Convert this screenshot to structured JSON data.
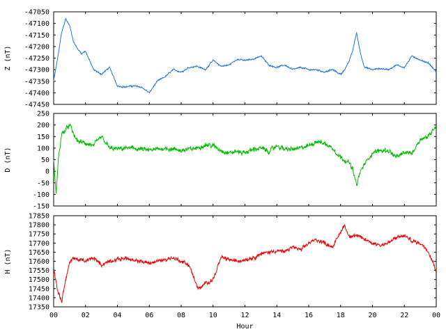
{
  "chart_data": [
    {
      "type": "line",
      "ylabel": "Z (nT)",
      "series_color": "#1f77d4",
      "ylim": [
        -47450,
        -47050
      ],
      "yticks": [
        -47050,
        -47100,
        -47150,
        -47200,
        -47250,
        -47300,
        -47350,
        -47400,
        -47450
      ],
      "x": [
        0,
        0.25,
        0.5,
        0.75,
        1.0,
        1.25,
        1.5,
        1.75,
        2.0,
        2.5,
        3.0,
        3.5,
        4.0,
        4.5,
        5.0,
        5.5,
        6.0,
        6.5,
        7.0,
        7.5,
        8.0,
        8.5,
        9.0,
        9.5,
        10.0,
        10.5,
        11.0,
        11.5,
        12.0,
        12.5,
        13.0,
        13.5,
        14.0,
        14.5,
        15.0,
        15.5,
        16.0,
        16.5,
        17.0,
        17.5,
        18.0,
        18.25,
        18.5,
        18.75,
        19.0,
        19.25,
        19.5,
        20.0,
        20.5,
        21.0,
        21.5,
        22.0,
        22.5,
        23.0,
        23.5,
        24.0
      ],
      "y": [
        -47350,
        -47250,
        -47140,
        -47080,
        -47110,
        -47180,
        -47210,
        -47230,
        -47220,
        -47300,
        -47320,
        -47290,
        -47370,
        -47375,
        -47370,
        -47375,
        -47400,
        -47350,
        -47330,
        -47300,
        -47310,
        -47290,
        -47285,
        -47300,
        -47260,
        -47285,
        -47280,
        -47255,
        -47260,
        -47255,
        -47240,
        -47280,
        -47290,
        -47280,
        -47300,
        -47290,
        -47300,
        -47300,
        -47310,
        -47300,
        -47320,
        -47300,
        -47270,
        -47220,
        -47140,
        -47230,
        -47290,
        -47300,
        -47295,
        -47300,
        -47280,
        -47290,
        -47240,
        -47260,
        -47270,
        -47310
      ]
    },
    {
      "type": "line",
      "ylabel": "D (nT)",
      "series_color": "#00bb00",
      "ylim": [
        -150,
        250
      ],
      "yticks": [
        250,
        200,
        150,
        100,
        50,
        0,
        -50,
        -100,
        -150
      ],
      "x": [
        0,
        0.15,
        0.3,
        0.5,
        0.75,
        1.0,
        1.25,
        1.5,
        2.0,
        2.5,
        3.0,
        3.5,
        4.0,
        4.5,
        5.0,
        5.5,
        6.0,
        6.5,
        7.0,
        7.5,
        8.0,
        8.5,
        9.0,
        9.5,
        10.0,
        10.5,
        11.0,
        11.5,
        12.0,
        12.5,
        13.0,
        13.5,
        14.0,
        14.5,
        15.0,
        15.5,
        16.0,
        16.5,
        17.0,
        17.5,
        18.0,
        18.5,
        18.75,
        19.0,
        19.25,
        19.5,
        20.0,
        20.5,
        21.0,
        21.5,
        22.0,
        22.5,
        23.0,
        23.5,
        24.0
      ],
      "y": [
        50,
        -100,
        60,
        160,
        180,
        200,
        160,
        130,
        120,
        110,
        150,
        100,
        95,
        100,
        100,
        95,
        90,
        95,
        100,
        95,
        90,
        95,
        100,
        115,
        110,
        90,
        80,
        85,
        80,
        95,
        100,
        85,
        110,
        95,
        95,
        100,
        110,
        130,
        120,
        100,
        60,
        40,
        10,
        -60,
        0,
        30,
        80,
        90,
        90,
        60,
        80,
        80,
        140,
        150,
        200
      ]
    },
    {
      "type": "line",
      "ylabel": "H (nT)",
      "xlabel": "Hour",
      "series_color": "#ee0000",
      "ylim": [
        17350,
        17850
      ],
      "yticks": [
        17850,
        17800,
        17750,
        17700,
        17650,
        17600,
        17550,
        17500,
        17450,
        17400,
        17350
      ],
      "xticks": [
        "00",
        "02",
        "04",
        "06",
        "08",
        "10",
        "12",
        "14",
        "16",
        "18",
        "20",
        "22",
        "00"
      ],
      "xlim": [
        0,
        24
      ],
      "x": [
        0,
        0.25,
        0.5,
        0.75,
        1.0,
        1.25,
        1.5,
        2.0,
        2.5,
        3.0,
        3.5,
        4.0,
        4.5,
        5.0,
        5.5,
        6.0,
        6.5,
        7.0,
        7.5,
        8.0,
        8.5,
        9.0,
        9.25,
        9.5,
        10.0,
        10.5,
        11.0,
        11.5,
        12.0,
        12.5,
        13.0,
        13.5,
        14.0,
        14.5,
        15.0,
        15.5,
        16.0,
        16.5,
        17.0,
        17.5,
        18.0,
        18.25,
        18.5,
        19.0,
        19.5,
        20.0,
        20.5,
        21.0,
        21.5,
        22.0,
        22.5,
        23.0,
        23.5,
        24.0
      ],
      "y": [
        17560,
        17440,
        17380,
        17500,
        17590,
        17620,
        17610,
        17600,
        17620,
        17580,
        17600,
        17610,
        17620,
        17600,
        17600,
        17590,
        17600,
        17610,
        17620,
        17600,
        17580,
        17460,
        17450,
        17480,
        17500,
        17620,
        17610,
        17600,
        17610,
        17620,
        17640,
        17650,
        17660,
        17650,
        17680,
        17660,
        17700,
        17720,
        17700,
        17680,
        17760,
        17800,
        17740,
        17740,
        17720,
        17700,
        17690,
        17700,
        17730,
        17740,
        17710,
        17700,
        17660,
        17550
      ]
    }
  ]
}
